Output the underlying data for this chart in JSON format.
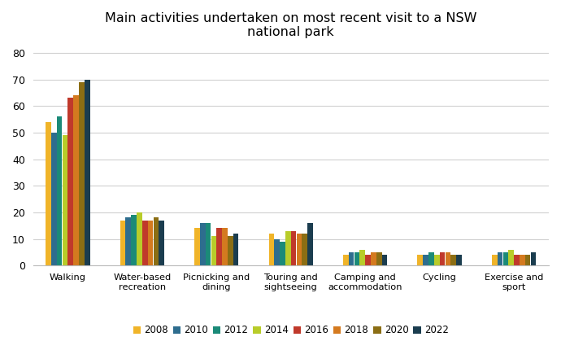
{
  "title": "Main activities undertaken on most recent visit to a NSW\nnational park",
  "categories": [
    "Walking",
    "Water-based\nrecreation",
    "Picnicking and\ndining",
    "Touring and\nsightseeing",
    "Camping and\naccommodation",
    "Cycling",
    "Exercise and\nsport"
  ],
  "years": [
    "2008",
    "2010",
    "2012",
    "2014",
    "2016",
    "2018",
    "2020",
    "2022"
  ],
  "colors": [
    "#F0B429",
    "#2E6D8E",
    "#1B8A78",
    "#B8CC2A",
    "#C0392B",
    "#D47A1F",
    "#8B6E14",
    "#1B3D4F"
  ],
  "data": {
    "Walking": [
      54,
      50,
      56,
      49,
      63,
      64,
      69,
      70
    ],
    "Water-based\nrecreation": [
      17,
      18,
      19,
      20,
      17,
      17,
      18,
      17
    ],
    "Picnicking and\ndining": [
      14,
      16,
      16,
      11,
      14,
      14,
      11,
      12
    ],
    "Touring and\nsightseeing": [
      12,
      10,
      9,
      13,
      13,
      12,
      12,
      16
    ],
    "Camping and\naccommodation": [
      4,
      5,
      5,
      6,
      4,
      5,
      5,
      4
    ],
    "Cycling": [
      4,
      4,
      5,
      4,
      5,
      5,
      4,
      4
    ],
    "Exercise and\nsport": [
      4,
      5,
      5,
      6,
      4,
      4,
      4,
      5
    ]
  },
  "ylim": [
    0,
    82
  ],
  "yticks": [
    0,
    10,
    20,
    30,
    40,
    50,
    60,
    70,
    80
  ],
  "legend_labels": [
    "2008",
    "2010",
    "2012",
    "2014",
    "2016",
    "2018",
    "2020",
    "2022"
  ],
  "background_color": "#ffffff",
  "grid_color": "#d0d0d0"
}
